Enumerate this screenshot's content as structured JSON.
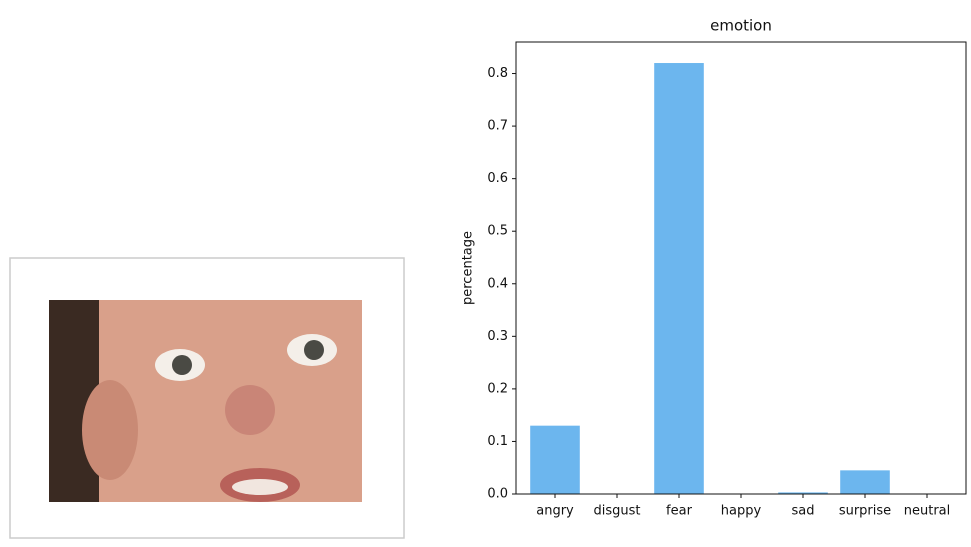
{
  "chart_data": {
    "type": "bar",
    "title": "emotion",
    "y_label": "percentage",
    "categories": [
      "angry",
      "disgust",
      "fear",
      "happy",
      "sad",
      "surprise",
      "neutral"
    ],
    "values": [
      0.13,
      0,
      0.82,
      0,
      0.003,
      0.045,
      0
    ],
    "color": "#6cb6ee",
    "ylim": [
      0,
      0.86
    ],
    "yticks": [
      {
        "value": 0,
        "label": "0.0"
      },
      0.1,
      0.2,
      0.3,
      0.4,
      0.5,
      0.6,
      0.7,
      0.8
    ]
  }
}
